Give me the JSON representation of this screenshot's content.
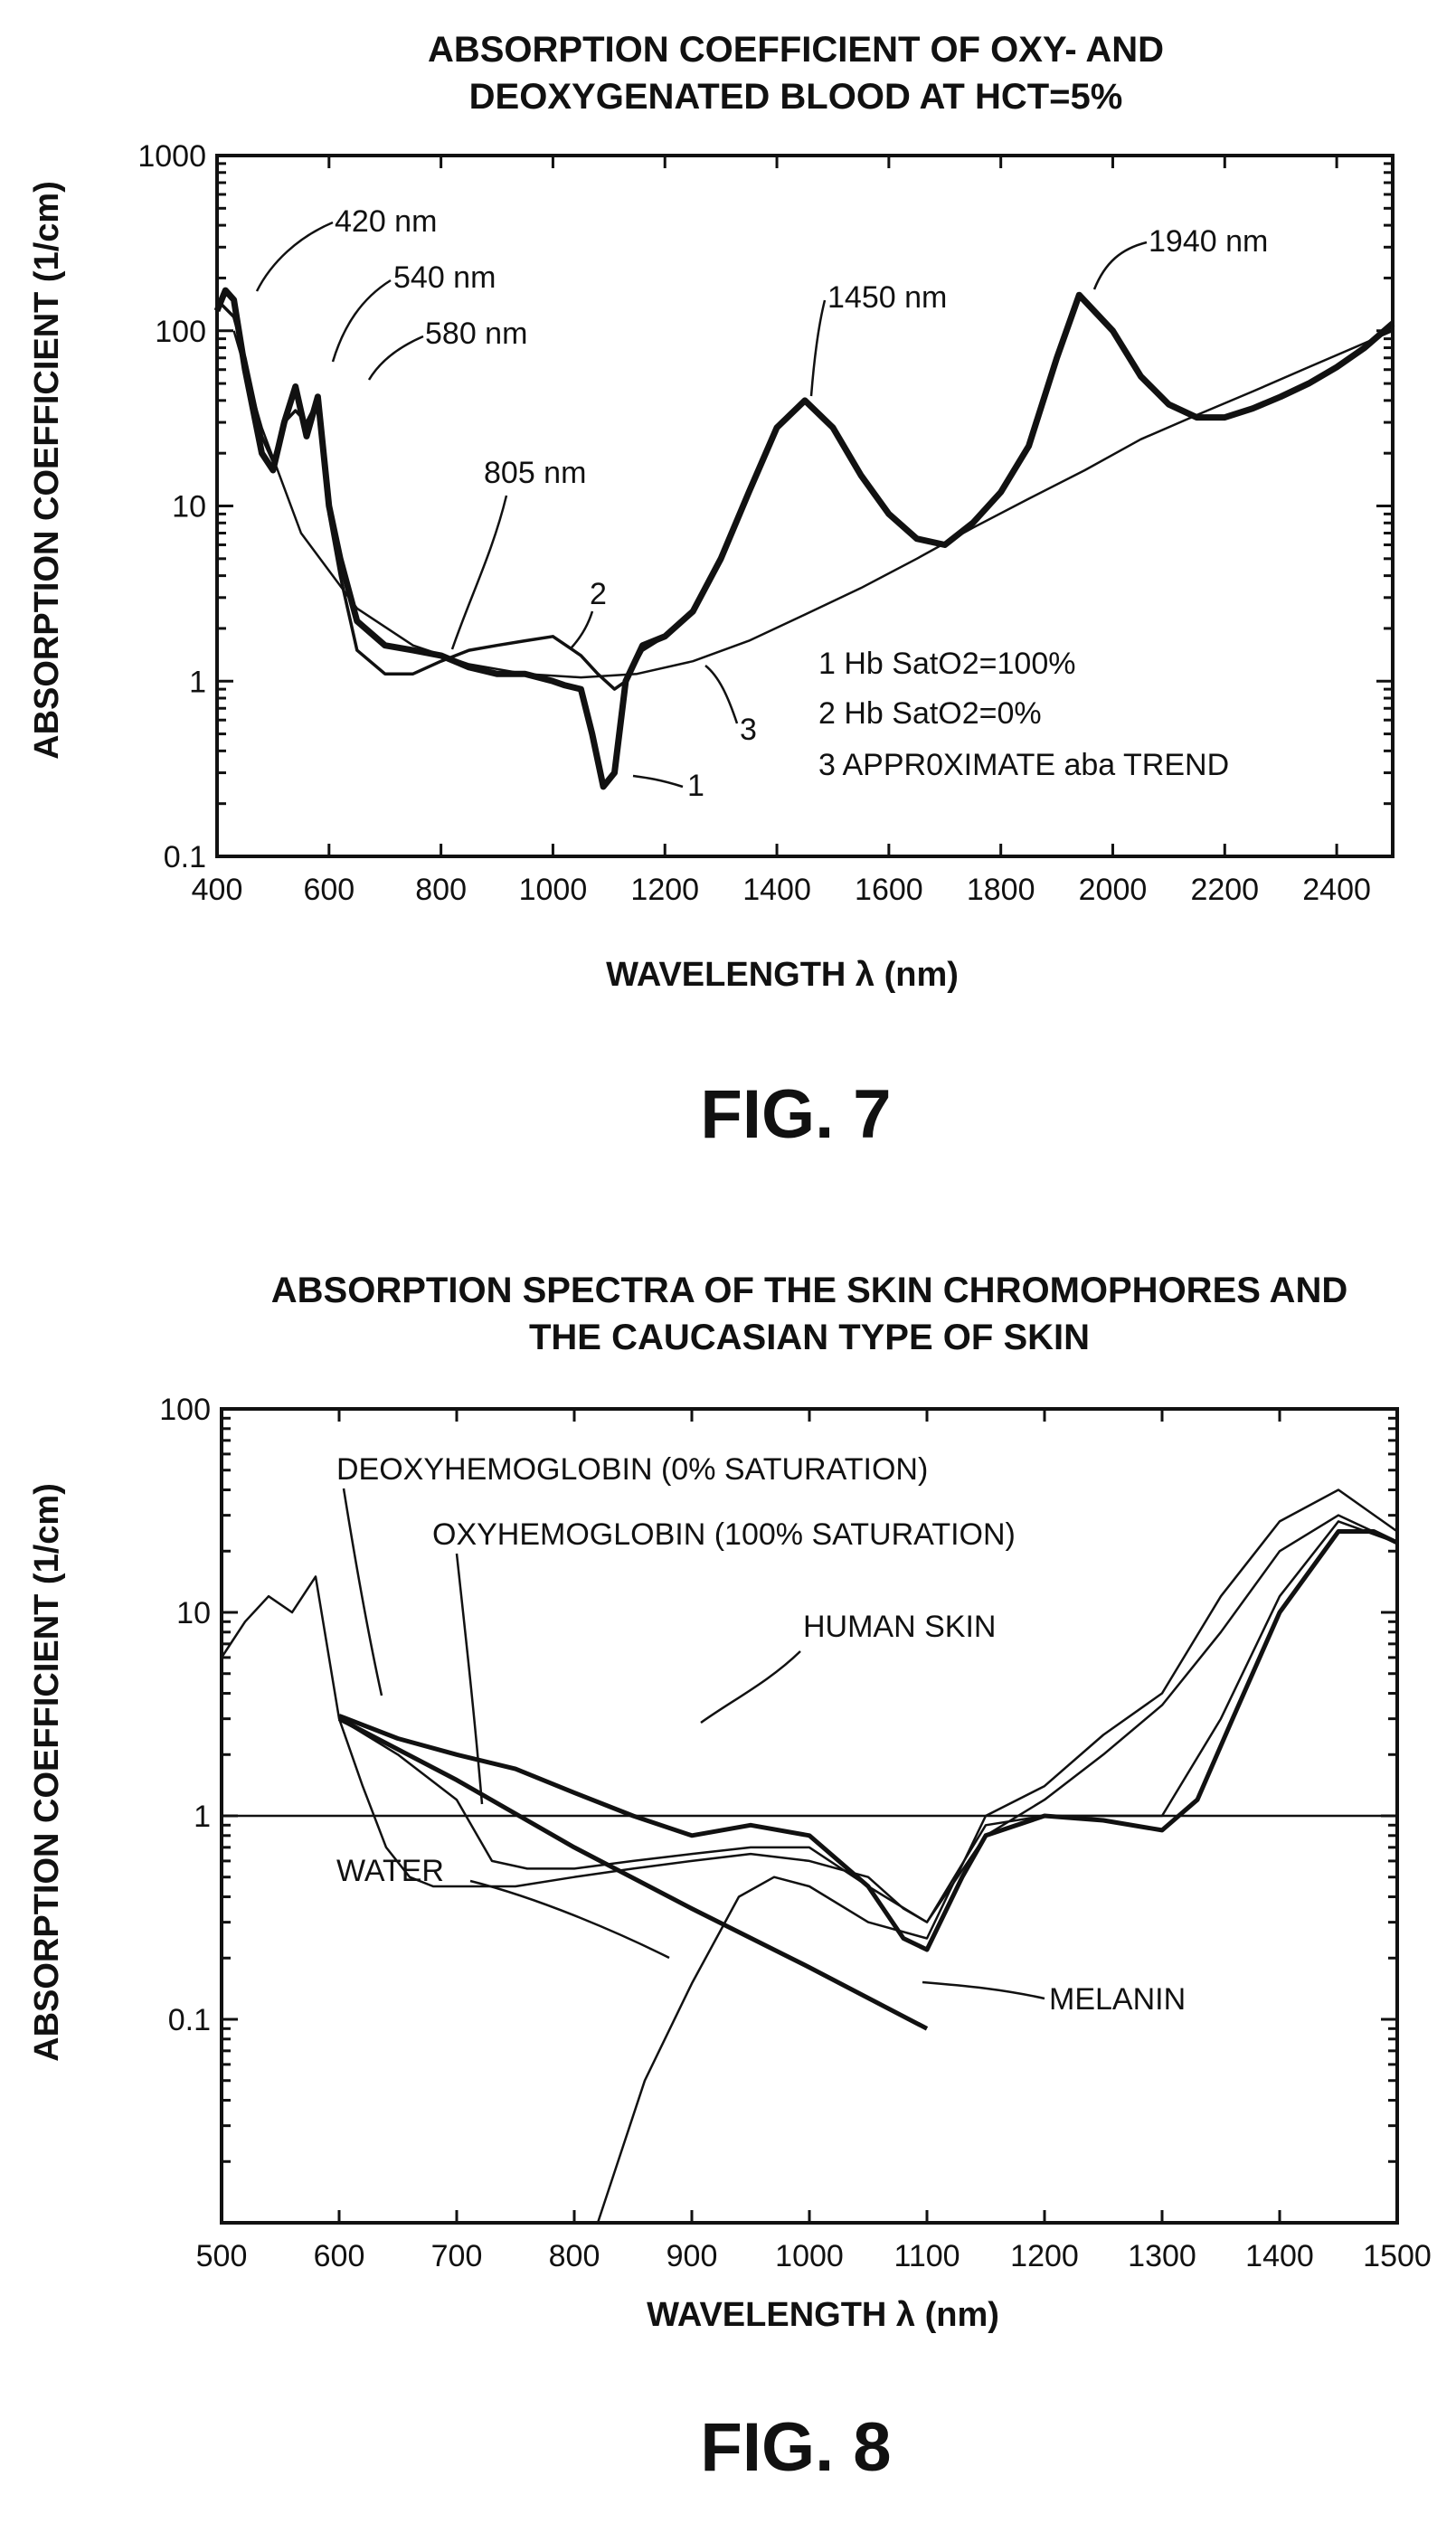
{
  "chart_data": [
    {
      "type": "line",
      "figure_label": "FIG. 7",
      "title_lines": [
        "ABSORPTION COEFFICIENT OF OXY- AND",
        "DEOXYGENATED BLOOD AT HCT=5%"
      ],
      "xlabel": "WAVELENGTH λ (nm)",
      "ylabel": "ABSORPTION COEFFICIENT (1/cm)",
      "xlim": [
        400,
        2500
      ],
      "ylim": [
        0.1,
        1000
      ],
      "yscale": "log",
      "x_ticks": [
        400,
        600,
        800,
        1000,
        1200,
        1400,
        1600,
        1800,
        2000,
        2200,
        2400
      ],
      "y_ticks": [
        0.1,
        1,
        10,
        100,
        1000
      ],
      "x_tick_labels": [
        "400",
        "600",
        "800",
        "1000",
        "1200",
        "1400",
        "1600",
        "1800",
        "2000",
        "2200",
        "2400"
      ],
      "y_tick_labels": [
        "0.1",
        "1",
        "10",
        "100",
        "1000"
      ],
      "legend": [
        "1 Hb SatO2=100%",
        "2 Hb SatO2=0%",
        "3 APPR0XIMATE aba TREND"
      ],
      "annotations": [
        {
          "text": "420 nm",
          "x": 420,
          "y": 140
        },
        {
          "text": "540 nm",
          "x": 540,
          "y": 45
        },
        {
          "text": "580 nm",
          "x": 580,
          "y": 40
        },
        {
          "text": "805 nm",
          "x": 805,
          "y": 1.4
        },
        {
          "text": "1450 nm",
          "x": 1450,
          "y": 40
        },
        {
          "text": "1940 nm",
          "x": 1940,
          "y": 170
        }
      ],
      "series_labels": [
        "1",
        "2",
        "3"
      ],
      "series": [
        {
          "name": "1",
          "x": [
            400,
            415,
            430,
            450,
            480,
            500,
            520,
            540,
            560,
            580,
            600,
            620,
            650,
            700,
            750,
            800,
            850,
            900,
            950,
            1000,
            1020,
            1050,
            1070,
            1090,
            1110,
            1130,
            1160,
            1200,
            1250,
            1300,
            1350,
            1400,
            1450,
            1500,
            1550,
            1600,
            1650,
            1700,
            1750,
            1800,
            1850,
            1900,
            1940,
            2000,
            2050,
            2100,
            2150,
            2200,
            2250,
            2300,
            2350,
            2400,
            2450,
            2500
          ],
          "y": [
            130,
            170,
            150,
            60,
            20,
            16,
            30,
            48,
            25,
            42,
            10,
            5,
            2.2,
            1.6,
            1.5,
            1.4,
            1.2,
            1.1,
            1.1,
            1.0,
            0.95,
            0.9,
            0.5,
            0.25,
            0.3,
            1.0,
            1.6,
            1.8,
            2.5,
            5,
            12,
            28,
            40,
            28,
            15,
            9,
            6.5,
            6,
            8,
            12,
            22,
            70,
            160,
            100,
            55,
            38,
            32,
            32,
            36,
            42,
            50,
            62,
            80,
            110
          ]
        },
        {
          "name": "2",
          "x": [
            400,
            430,
            450,
            480,
            500,
            520,
            540,
            560,
            580,
            600,
            620,
            650,
            700,
            750,
            800,
            850,
            900,
            950,
            1000,
            1050,
            1080,
            1110,
            1130,
            1160,
            1200
          ],
          "y": [
            150,
            120,
            70,
            25,
            18,
            30,
            35,
            30,
            40,
            9,
            4,
            1.5,
            1.1,
            1.1,
            1.3,
            1.5,
            1.6,
            1.7,
            1.8,
            1.4,
            1.1,
            0.9,
            1.0,
            1.5,
            1.8
          ]
        },
        {
          "name": "3",
          "x": [
            430,
            480,
            550,
            650,
            750,
            850,
            950,
            1050,
            1150,
            1250,
            1350,
            1450,
            1550,
            1650,
            1750,
            1850,
            1950,
            2050,
            2150,
            2250,
            2350,
            2450,
            2500
          ],
          "y": [
            100,
            28,
            7,
            2.6,
            1.6,
            1.25,
            1.1,
            1.05,
            1.1,
            1.3,
            1.7,
            2.4,
            3.4,
            5,
            7.5,
            11,
            16,
            24,
            33,
            45,
            62,
            85,
            100
          ]
        }
      ]
    },
    {
      "type": "line",
      "figure_label": "FIG. 8",
      "title_lines": [
        "ABSORPTION SPECTRA OF THE SKIN CHROMOPHORES AND",
        "THE CAUCASIAN TYPE OF SKIN"
      ],
      "xlabel": "WAVELENGTH λ (nm)",
      "ylabel": "ABSORPTION COEFFICIENT (1/cm)",
      "xlim": [
        500,
        1500
      ],
      "ylim": [
        0.01,
        100
      ],
      "yscale": "log",
      "x_ticks": [
        500,
        600,
        700,
        800,
        900,
        1000,
        1100,
        1200,
        1300,
        1400,
        1500
      ],
      "y_ticks": [
        0.1,
        1,
        10,
        100
      ],
      "x_tick_labels": [
        "500",
        "600",
        "700",
        "800",
        "900",
        "1000",
        "1100",
        "1200",
        "1300",
        "1400",
        "1500"
      ],
      "y_tick_labels": [
        "0.1",
        "1",
        "10",
        "100"
      ],
      "reference_line_y": 1,
      "series": [
        {
          "name": "DEOXYHEMOGLOBIN (0% SATURATION)",
          "x": [
            500,
            520,
            540,
            560,
            580,
            600,
            620,
            640,
            660,
            680,
            700,
            750,
            800,
            850,
            900,
            950,
            1000,
            1050,
            1080,
            1100,
            1150,
            1200,
            1250,
            1300,
            1350,
            1400,
            1450,
            1500
          ],
          "y": [
            6,
            9,
            12,
            10,
            15,
            3,
            1.4,
            0.7,
            0.5,
            0.45,
            0.45,
            0.45,
            0.5,
            0.55,
            0.6,
            0.65,
            0.6,
            0.5,
            0.35,
            0.3,
            0.8,
            1.2,
            2,
            3.5,
            8,
            20,
            30,
            22
          ]
        },
        {
          "name": "OXYHEMOGLOBIN (100% SATURATION)",
          "x": [
            600,
            650,
            700,
            730,
            760,
            800,
            850,
            900,
            950,
            1000,
            1050,
            1100,
            1150,
            1200,
            1250,
            1300,
            1350,
            1400,
            1450,
            1500
          ],
          "y": [
            3,
            2,
            1.2,
            0.6,
            0.55,
            0.55,
            0.6,
            0.65,
            0.7,
            0.7,
            0.45,
            0.3,
            0.9,
            1.0,
            1.0,
            1.0,
            3,
            12,
            28,
            22
          ]
        },
        {
          "name": "HUMAN SKIN",
          "x": [
            600,
            650,
            700,
            750,
            800,
            850,
            900,
            950,
            1000,
            1050,
            1080,
            1100,
            1130,
            1150,
            1200,
            1250,
            1300,
            1330,
            1360,
            1400,
            1450,
            1480,
            1500
          ],
          "y": [
            3.1,
            2.4,
            2.0,
            1.7,
            1.3,
            1.0,
            0.8,
            0.9,
            0.8,
            0.45,
            0.25,
            0.22,
            0.5,
            0.8,
            1.0,
            0.95,
            0.85,
            1.2,
            3,
            10,
            25,
            25,
            22
          ]
        },
        {
          "name": "MELANIN",
          "x": [
            600,
            700,
            800,
            900,
            1000,
            1100
          ],
          "y": [
            3.0,
            1.5,
            0.7,
            0.35,
            0.18,
            0.09
          ]
        },
        {
          "name": "WATER",
          "x": [
            820,
            860,
            900,
            940,
            970,
            1000,
            1050,
            1100,
            1150,
            1200,
            1250,
            1300,
            1350,
            1400,
            1450,
            1500
          ],
          "y": [
            0.01,
            0.05,
            0.15,
            0.4,
            0.5,
            0.45,
            0.3,
            0.25,
            1.0,
            1.4,
            2.5,
            4,
            12,
            28,
            40,
            25
          ]
        }
      ]
    }
  ]
}
